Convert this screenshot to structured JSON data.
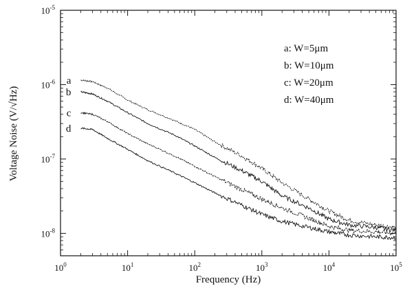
{
  "chart_data": {
    "type": "line",
    "xlabel": "Frequency (Hz)",
    "ylabel": "Voltage Noise (V/√Hz)",
    "xscale": "log",
    "yscale": "log",
    "xlim": [
      1,
      100000
    ],
    "ylim": [
      5e-09,
      1e-05
    ],
    "grid": false,
    "legend_placement": "top-right",
    "x_ticks": [
      {
        "value": 1,
        "base": "10",
        "exp": "0"
      },
      {
        "value": 10,
        "base": "10",
        "exp": "1"
      },
      {
        "value": 100,
        "base": "10",
        "exp": "2"
      },
      {
        "value": 1000,
        "base": "10",
        "exp": "3"
      },
      {
        "value": 10000,
        "base": "10",
        "exp": "4"
      },
      {
        "value": 100000,
        "base": "10",
        "exp": "5"
      }
    ],
    "y_ticks": [
      {
        "value": 1e-08,
        "base": "10",
        "exp": "-8"
      },
      {
        "value": 1e-07,
        "base": "10",
        "exp": "-7"
      },
      {
        "value": 1e-06,
        "base": "10",
        "exp": "-6"
      },
      {
        "value": 1e-05,
        "base": "10",
        "exp": "-5"
      }
    ],
    "legend": [
      {
        "tag": "a",
        "text": "a: W=5μm"
      },
      {
        "tag": "b",
        "text": "b: W=10μm"
      },
      {
        "tag": "c",
        "text": "c: W=20μm"
      },
      {
        "tag": "d",
        "text": "d: W=40μm"
      }
    ],
    "series": [
      {
        "name": "a",
        "x": [
          2,
          3,
          5,
          10,
          20,
          50,
          100,
          200,
          500,
          1000,
          2000,
          5000,
          10000,
          20000,
          50000,
          100000
        ],
        "y": [
          1.15e-06,
          1.1e-06,
          9e-07,
          6.2e-07,
          4.6e-07,
          3.3e-07,
          2.5e-07,
          1.7e-07,
          1.1e-07,
          7.5e-08,
          4.8e-08,
          2.9e-08,
          2e-08,
          1.5e-08,
          1.3e-08,
          1.2e-08
        ]
      },
      {
        "name": "b",
        "x": [
          2,
          3,
          5,
          10,
          20,
          50,
          100,
          200,
          500,
          1000,
          2000,
          5000,
          10000,
          20000,
          50000,
          100000
        ],
        "y": [
          8e-07,
          7.5e-07,
          6e-07,
          4.2e-07,
          3e-07,
          2.1e-07,
          1.5e-07,
          1.05e-07,
          7e-08,
          5e-08,
          3.2e-08,
          2.2e-08,
          1.55e-08,
          1.3e-08,
          1.2e-08,
          1.1e-08
        ]
      },
      {
        "name": "c",
        "x": [
          2,
          3,
          5,
          10,
          20,
          50,
          100,
          200,
          500,
          1000,
          2000,
          5000,
          10000,
          20000,
          50000,
          100000
        ],
        "y": [
          4.2e-07,
          4e-07,
          3.2e-07,
          2.2e-07,
          1.6e-07,
          1.1e-07,
          8e-08,
          5.8e-08,
          3.9e-08,
          2.9e-08,
          2.2e-08,
          1.6e-08,
          1.25e-08,
          1.1e-08,
          1.05e-08,
          1e-08
        ]
      },
      {
        "name": "d",
        "x": [
          2,
          3,
          5,
          10,
          20,
          50,
          100,
          200,
          500,
          1000,
          2000,
          5000,
          10000,
          20000,
          50000,
          100000
        ],
        "y": [
          2.6e-07,
          2.5e-07,
          1.9e-07,
          1.35e-07,
          9.5e-08,
          6.5e-08,
          4.8e-08,
          3.5e-08,
          2.4e-08,
          1.8e-08,
          1.45e-08,
          1.2e-08,
          1.05e-08,
          9.5e-09,
          9e-09,
          8.8e-09
        ]
      }
    ]
  }
}
